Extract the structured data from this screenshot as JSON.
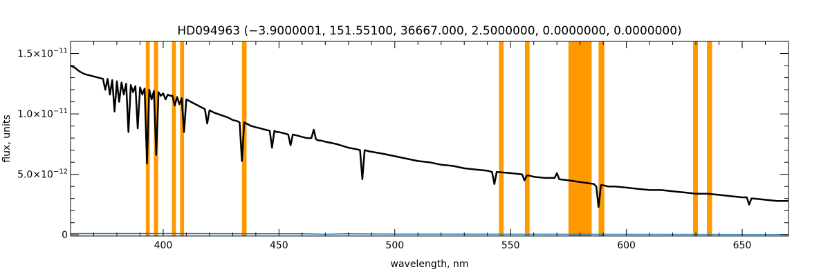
{
  "chart_data": {
    "type": "line",
    "title": "HD094963    (−3.9000001, 151.55100, 36667.000, 2.5000000, 0.0000000, 0.0000000)",
    "xlabel": "wavelength, nm",
    "ylabel": "flux, units",
    "xlim": [
      360,
      670
    ],
    "ylim": [
      -1e-13,
      1.6e-11
    ],
    "x_ticks": [
      {
        "value": 400,
        "label": "400"
      },
      {
        "value": 450,
        "label": "450"
      },
      {
        "value": 500,
        "label": "500"
      },
      {
        "value": 550,
        "label": "550"
      },
      {
        "value": 600,
        "label": "600"
      },
      {
        "value": 650,
        "label": "650"
      }
    ],
    "y_ticks": [
      {
        "value": 0,
        "label": "0",
        "base": "0",
        "exp": ""
      },
      {
        "value": 5e-12,
        "label": "5.0×10⁻¹²",
        "base": "5.0×10",
        "exp": "−12"
      },
      {
        "value": 1e-11,
        "label": "1.0×10⁻¹¹",
        "base": "1.0×10",
        "exp": "−11"
      },
      {
        "value": 1.5e-11,
        "label": "1.5×10⁻¹¹",
        "base": "1.5×10",
        "exp": "−11"
      }
    ],
    "grid": false,
    "colors": {
      "spectrum": "#000000",
      "mask": "#ff9900",
      "error": "#1f77b4"
    },
    "masked_bands": [
      [
        392.5,
        394.2
      ],
      [
        396.0,
        397.8
      ],
      [
        403.8,
        405.5
      ],
      [
        407.3,
        409.0
      ],
      [
        434.0,
        436.0
      ],
      [
        545.0,
        547.0
      ],
      [
        556.2,
        558.2
      ],
      [
        575.0,
        585.0
      ],
      [
        588.0,
        590.5
      ],
      [
        628.8,
        630.9
      ],
      [
        634.8,
        637.0
      ]
    ],
    "series": [
      {
        "type": "line",
        "x": [
          360,
          362,
          364,
          366,
          368,
          370,
          372,
          374,
          375,
          376,
          377,
          378,
          379,
          380,
          381,
          382,
          383,
          384,
          385,
          386,
          387,
          388,
          389,
          390,
          391,
          392,
          393,
          394,
          395,
          396,
          397,
          398,
          399,
          400,
          401,
          402,
          403,
          404,
          405,
          406,
          407,
          408,
          409,
          410,
          411,
          412,
          414,
          416,
          418,
          419,
          420,
          421,
          422,
          425,
          428,
          430,
          432,
          433,
          434,
          435,
          436,
          437,
          438,
          440,
          442,
          444,
          446,
          447,
          448,
          449,
          450,
          452,
          454,
          455,
          456,
          458,
          460,
          462,
          464,
          465,
          466,
          467,
          468,
          470,
          475,
          480,
          483,
          485,
          486,
          487,
          489,
          492,
          495,
          500,
          505,
          510,
          515,
          520,
          525,
          530,
          535,
          540,
          542,
          543,
          544,
          550,
          555,
          556,
          557,
          558,
          560,
          565,
          569,
          570,
          571,
          575,
          586,
          587,
          588,
          589,
          590,
          592,
          595,
          600,
          605,
          610,
          615,
          620,
          625,
          630,
          635,
          640,
          645,
          650,
          652,
          653,
          654,
          655,
          660,
          665,
          670
        ],
        "y": [
          1.4e-11,
          1.38e-11,
          1.35e-11,
          1.33e-11,
          1.32e-11,
          1.31e-11,
          1.3e-11,
          1.29e-11,
          1.2e-11,
          1.29e-11,
          1.16e-11,
          1.28e-11,
          1.02e-11,
          1.27e-11,
          1.1e-11,
          1.26e-11,
          1.16e-11,
          1.25e-11,
          8.5e-12,
          1.24e-11,
          1.18e-11,
          1.23e-11,
          8.8e-12,
          1.22e-11,
          1.16e-11,
          1.21e-11,
          5.9e-12,
          1.2e-11,
          1.12e-11,
          1.19e-11,
          6.6e-12,
          1.18e-11,
          1.15e-11,
          1.17e-11,
          1.12e-11,
          1.16e-11,
          1.15e-11,
          1.15e-11,
          1.07e-11,
          1.14e-11,
          1.08e-11,
          1.13e-11,
          8.5e-12,
          1.12e-11,
          1.11e-11,
          1.1e-11,
          1.08e-11,
          1.06e-11,
          1.04e-11,
          9.2e-12,
          1.03e-11,
          1.02e-11,
          1.01e-11,
          9.9e-12,
          9.7e-12,
          9.5e-12,
          9.4e-12,
          9.3e-12,
          6.1e-12,
          9.3e-12,
          9.2e-12,
          9.1e-12,
          9e-12,
          8.9e-12,
          8.8e-12,
          8.7e-12,
          8.6e-12,
          7.2e-12,
          8.6e-12,
          8.5e-12,
          8.5e-12,
          8.4e-12,
          8.3e-12,
          7.4e-12,
          8.3e-12,
          8.2e-12,
          8.1e-12,
          8e-12,
          8e-12,
          8.7e-12,
          7.9e-12,
          7.8e-12,
          7.8e-12,
          7.7e-12,
          7.5e-12,
          7.2e-12,
          7.1e-12,
          7e-12,
          4.6e-12,
          7e-12,
          6.9e-12,
          6.8e-12,
          6.7e-12,
          6.5e-12,
          6.3e-12,
          6.1e-12,
          6e-12,
          5.8e-12,
          5.7e-12,
          5.5e-12,
          5.4e-12,
          5.3e-12,
          5.2e-12,
          4.2e-12,
          5.2e-12,
          5.1e-12,
          5e-12,
          4.5e-12,
          4.9e-12,
          4.9e-12,
          4.8e-12,
          4.7e-12,
          4.7e-12,
          5.1e-12,
          4.6e-12,
          4.5e-12,
          4.2e-12,
          4e-12,
          2.3e-12,
          4.1e-12,
          4.1e-12,
          4e-12,
          4e-12,
          3.9e-12,
          3.8e-12,
          3.7e-12,
          3.7e-12,
          3.6e-12,
          3.5e-12,
          3.4e-12,
          3.4e-12,
          3.3e-12,
          3.2e-12,
          3.1e-12,
          3.1e-12,
          2.5e-12,
          3e-12,
          3e-12,
          2.9e-12,
          2.8e-12,
          2.8e-12
        ]
      },
      {
        "type": "line",
        "x": [
          360,
          400,
          440,
          460,
          470,
          480,
          500,
          550,
          600,
          650,
          670
        ],
        "y": [
          1e-13,
          1e-13,
          8e-14,
          9e-14,
          4e-14,
          8e-14,
          6e-14,
          5e-14,
          4e-14,
          3e-14,
          3e-14
        ]
      }
    ]
  }
}
